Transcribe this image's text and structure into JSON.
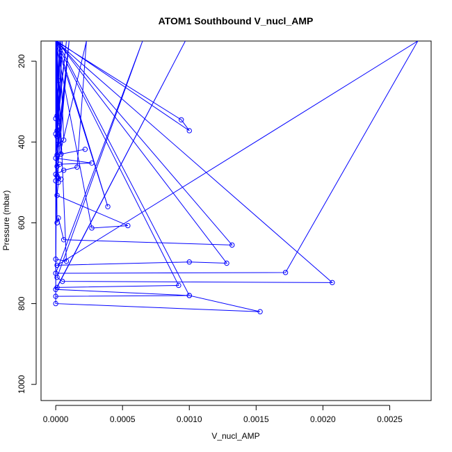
{
  "chart_data": {
    "type": "line",
    "title": "ATOM1 Southbound V_nucl_AMP",
    "xlabel": "V_nucl_AMP",
    "ylabel": "Pressure (mbar)",
    "xlim": [
      -0.00011,
      0.00281
    ],
    "ylim": [
      1040,
      150
    ],
    "y_reversed": true,
    "grid": false,
    "x_ticks": [
      0,
      0.0005,
      0.001,
      0.0015,
      0.002,
      0.0025
    ],
    "x_tick_labels": [
      "0.0000",
      "0.0005",
      "0.0010",
      "0.0015",
      "0.0020",
      "0.0025"
    ],
    "y_ticks": [
      200,
      400,
      600,
      800,
      1000
    ],
    "y_tick_labels": [
      "200",
      "400",
      "600",
      "800",
      "1000"
    ],
    "series": [
      {
        "color": "#0000ff",
        "style": "b",
        "x": [
          0,
          2e-05,
          0,
          3e-05,
          1e-05,
          4e-05,
          0,
          2e-05,
          5e-05,
          1e-05,
          8e-05,
          0,
          1e-05,
          3e-05,
          6e-05,
          2e-05,
          0,
          4e-05,
          0.00022,
          1e-05,
          0.0001,
          0,
          0.00027,
          3e-05,
          1e-05,
          0.00023,
          0.00016,
          6e-05,
          0,
          0.0001,
          1e-05,
          4e-05,
          2e-05,
          0,
          1e-05,
          0.00039,
          0,
          2e-05,
          1e-05,
          0.00054,
          0.00027,
          0,
          1e-05,
          2e-05,
          6e-05,
          0.00132,
          1e-05,
          0,
          8e-05,
          1e-05,
          0.00128,
          0.001,
          1e-05,
          0.00271,
          0.00172,
          0,
          0.00065,
          1e-05,
          5e-05,
          0.00207,
          0,
          0.00092,
          1e-05,
          0.00097,
          0,
          0.001,
          0,
          1e-05,
          0.001,
          0.00153,
          0,
          0,
          0.00094,
          0.001,
          1e-05
        ],
        "y": [
          150,
          248,
          150,
          150,
          335,
          150,
          342,
          360,
          150,
          372,
          150,
          380,
          386,
          150,
          395,
          405,
          150,
          430,
          418,
          432,
          150,
          440,
          452,
          455,
          460,
          150,
          462,
          470,
          480,
          150,
          484,
          492,
          490,
          496,
          150,
          560,
          150,
          500,
          532,
          607,
          613,
          150,
          600,
          588,
          642,
          655,
          150,
          690,
          695,
          150,
          700,
          697,
          705,
          150,
          723,
          725,
          150,
          735,
          745,
          748,
          150,
          755,
          760,
          150,
          765,
          780,
          782,
          150,
          780,
          820,
          800,
          150,
          345,
          372,
          150
        ]
      }
    ]
  }
}
